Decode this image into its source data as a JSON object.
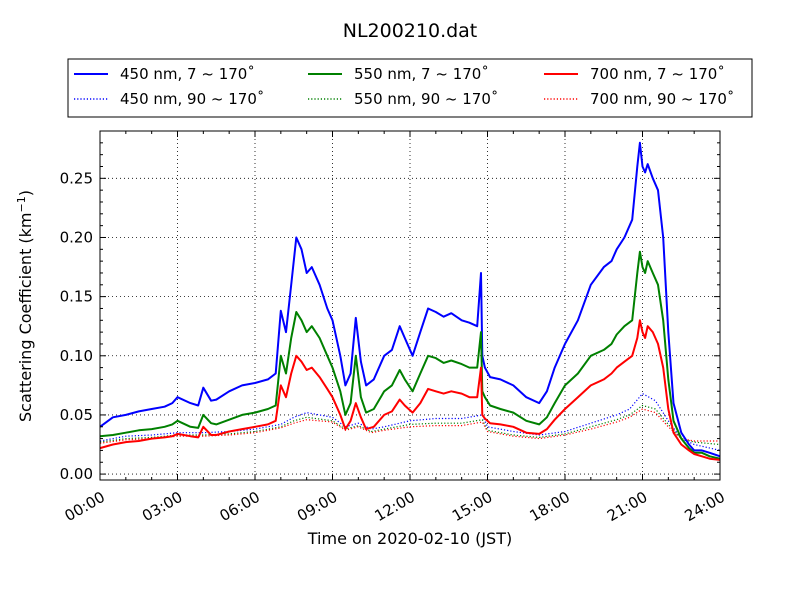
{
  "chart_data": {
    "type": "line",
    "title": "NL200210.dat",
    "xlabel": "Time on 2020-02-10 (JST)",
    "ylabel_main": "Scattering Coefficient (km",
    "ylabel_sup": "−1",
    "ylabel_tail": ")",
    "xlim": [
      0,
      24
    ],
    "ylim": [
      -0.005,
      0.29
    ],
    "x_ticks": [
      0,
      3,
      6,
      9,
      12,
      15,
      18,
      21,
      24
    ],
    "x_tick_labels": [
      "00:00",
      "03:00",
      "06:00",
      "09:00",
      "12:00",
      "15:00",
      "18:00",
      "21:00",
      "24:00"
    ],
    "y_ticks": [
      0.0,
      0.05,
      0.1,
      0.15,
      0.2,
      0.25
    ],
    "y_tick_labels": [
      "0.00",
      "0.05",
      "0.10",
      "0.15",
      "0.20",
      "0.25"
    ],
    "grid": true,
    "legend_position": "top",
    "series": [
      {
        "name": "450 nm, 7 ~ 170˚",
        "color": "#0000ff",
        "style": "solid",
        "x": [
          0,
          0.5,
          1,
          1.5,
          2,
          2.5,
          2.8,
          3,
          3.5,
          3.8,
          4,
          4.3,
          4.5,
          5,
          5.5,
          6,
          6.5,
          6.8,
          7,
          7.2,
          7.4,
          7.6,
          7.8,
          8,
          8.2,
          8.5,
          8.8,
          9,
          9.3,
          9.5,
          9.7,
          9.9,
          10.1,
          10.3,
          10.6,
          11,
          11.3,
          11.6,
          11.8,
          12.1,
          12.4,
          12.7,
          13,
          13.3,
          13.6,
          14,
          14.3,
          14.6,
          14.75,
          14.8,
          14.9,
          15.1,
          15.5,
          16,
          16.5,
          17,
          17.3,
          17.6,
          18,
          18.5,
          19,
          19.5,
          19.8,
          20,
          20.3,
          20.6,
          20.8,
          20.9,
          21,
          21.1,
          21.2,
          21.4,
          21.6,
          21.8,
          22,
          22.2,
          22.5,
          22.8,
          23,
          23.3,
          23.6,
          24
        ],
        "y": [
          0.04,
          0.048,
          0.05,
          0.053,
          0.055,
          0.057,
          0.06,
          0.065,
          0.06,
          0.058,
          0.073,
          0.062,
          0.063,
          0.07,
          0.075,
          0.077,
          0.08,
          0.085,
          0.138,
          0.12,
          0.16,
          0.2,
          0.19,
          0.17,
          0.175,
          0.16,
          0.14,
          0.13,
          0.1,
          0.075,
          0.085,
          0.132,
          0.095,
          0.075,
          0.08,
          0.1,
          0.105,
          0.125,
          0.115,
          0.1,
          0.12,
          0.14,
          0.137,
          0.133,
          0.136,
          0.13,
          0.128,
          0.125,
          0.17,
          0.1,
          0.09,
          0.082,
          0.08,
          0.075,
          0.065,
          0.06,
          0.07,
          0.09,
          0.11,
          0.13,
          0.16,
          0.175,
          0.18,
          0.19,
          0.2,
          0.215,
          0.26,
          0.28,
          0.26,
          0.255,
          0.262,
          0.25,
          0.24,
          0.2,
          0.12,
          0.06,
          0.035,
          0.025,
          0.02,
          0.02,
          0.018,
          0.015
        ]
      },
      {
        "name": "450 nm, 90 ~ 170˚",
        "color": "#0000ff",
        "style": "dotted",
        "x": [
          0,
          1,
          2,
          3,
          4,
          5,
          6,
          7,
          7.5,
          8,
          9,
          9.5,
          10,
          10.5,
          11,
          12,
          13,
          14,
          14.8,
          15,
          16,
          17,
          18,
          19,
          20,
          20.5,
          21,
          21.5,
          22,
          22.5,
          23,
          24
        ],
        "y": [
          0.028,
          0.032,
          0.033,
          0.035,
          0.035,
          0.036,
          0.038,
          0.042,
          0.048,
          0.052,
          0.048,
          0.04,
          0.043,
          0.038,
          0.04,
          0.045,
          0.047,
          0.047,
          0.05,
          0.04,
          0.036,
          0.033,
          0.036,
          0.043,
          0.05,
          0.055,
          0.068,
          0.062,
          0.045,
          0.03,
          0.025,
          0.02
        ]
      },
      {
        "name": "550 nm, 7 ~ 170˚",
        "color": "#008000",
        "style": "solid",
        "x": [
          0,
          0.5,
          1,
          1.5,
          2,
          2.5,
          2.8,
          3,
          3.5,
          3.8,
          4,
          4.3,
          4.5,
          5,
          5.5,
          6,
          6.5,
          6.8,
          7,
          7.2,
          7.4,
          7.6,
          7.8,
          8,
          8.2,
          8.5,
          8.8,
          9,
          9.3,
          9.5,
          9.7,
          9.9,
          10.1,
          10.3,
          10.6,
          11,
          11.3,
          11.6,
          11.8,
          12.1,
          12.4,
          12.7,
          13,
          13.3,
          13.6,
          14,
          14.3,
          14.6,
          14.75,
          14.8,
          14.9,
          15.1,
          15.5,
          16,
          16.5,
          17,
          17.3,
          17.6,
          18,
          18.5,
          19,
          19.5,
          19.8,
          20,
          20.3,
          20.6,
          20.8,
          20.9,
          21,
          21.1,
          21.2,
          21.4,
          21.6,
          21.8,
          22,
          22.2,
          22.5,
          22.8,
          23,
          23.3,
          23.6,
          24
        ],
        "y": [
          0.032,
          0.033,
          0.035,
          0.037,
          0.038,
          0.04,
          0.042,
          0.045,
          0.04,
          0.039,
          0.05,
          0.043,
          0.042,
          0.046,
          0.05,
          0.052,
          0.055,
          0.058,
          0.1,
          0.085,
          0.115,
          0.137,
          0.13,
          0.12,
          0.125,
          0.115,
          0.1,
          0.09,
          0.07,
          0.05,
          0.06,
          0.1,
          0.065,
          0.052,
          0.055,
          0.07,
          0.075,
          0.088,
          0.08,
          0.07,
          0.085,
          0.1,
          0.098,
          0.094,
          0.096,
          0.093,
          0.09,
          0.09,
          0.12,
          0.07,
          0.065,
          0.058,
          0.055,
          0.052,
          0.045,
          0.042,
          0.048,
          0.06,
          0.075,
          0.085,
          0.1,
          0.105,
          0.11,
          0.118,
          0.125,
          0.13,
          0.17,
          0.188,
          0.175,
          0.17,
          0.18,
          0.17,
          0.16,
          0.13,
          0.08,
          0.045,
          0.03,
          0.022,
          0.018,
          0.018,
          0.015,
          0.013
        ]
      },
      {
        "name": "550 nm, 90 ~ 170˚",
        "color": "#008000",
        "style": "dotted",
        "x": [
          0,
          1,
          2,
          3,
          4,
          5,
          6,
          7,
          7.5,
          8,
          9,
          9.5,
          10,
          10.5,
          11,
          12,
          13,
          14,
          14.8,
          15,
          16,
          17,
          18,
          19,
          20,
          20.5,
          21,
          21.5,
          22,
          22.5,
          23,
          24
        ],
        "y": [
          0.027,
          0.03,
          0.031,
          0.033,
          0.033,
          0.034,
          0.036,
          0.04,
          0.045,
          0.048,
          0.045,
          0.038,
          0.041,
          0.036,
          0.038,
          0.042,
          0.043,
          0.043,
          0.046,
          0.037,
          0.033,
          0.031,
          0.034,
          0.04,
          0.046,
          0.05,
          0.058,
          0.055,
          0.042,
          0.03,
          0.027,
          0.025
        ]
      },
      {
        "name": "700 nm, 7 ~ 170˚",
        "color": "#ff0000",
        "style": "solid",
        "x": [
          0,
          0.5,
          1,
          1.5,
          2,
          2.5,
          2.8,
          3,
          3.5,
          3.8,
          4,
          4.3,
          4.5,
          5,
          5.5,
          6,
          6.5,
          6.8,
          7,
          7.2,
          7.4,
          7.6,
          7.8,
          8,
          8.2,
          8.5,
          8.8,
          9,
          9.3,
          9.5,
          9.7,
          9.9,
          10.1,
          10.3,
          10.6,
          11,
          11.3,
          11.6,
          11.8,
          12.1,
          12.4,
          12.7,
          13,
          13.3,
          13.6,
          14,
          14.3,
          14.6,
          14.75,
          14.8,
          14.9,
          15.1,
          15.5,
          16,
          16.5,
          17,
          17.3,
          17.6,
          18,
          18.5,
          19,
          19.5,
          19.8,
          20,
          20.3,
          20.6,
          20.8,
          20.9,
          21,
          21.1,
          21.2,
          21.4,
          21.6,
          21.8,
          22,
          22.2,
          22.5,
          22.8,
          23,
          23.3,
          23.6,
          24
        ],
        "y": [
          0.022,
          0.025,
          0.027,
          0.028,
          0.03,
          0.031,
          0.032,
          0.034,
          0.032,
          0.031,
          0.04,
          0.033,
          0.033,
          0.036,
          0.038,
          0.04,
          0.042,
          0.045,
          0.075,
          0.065,
          0.085,
          0.1,
          0.095,
          0.088,
          0.09,
          0.082,
          0.072,
          0.065,
          0.05,
          0.038,
          0.045,
          0.06,
          0.048,
          0.038,
          0.04,
          0.05,
          0.053,
          0.063,
          0.058,
          0.052,
          0.06,
          0.072,
          0.07,
          0.068,
          0.07,
          0.068,
          0.065,
          0.065,
          0.09,
          0.05,
          0.047,
          0.043,
          0.042,
          0.04,
          0.035,
          0.034,
          0.038,
          0.046,
          0.055,
          0.065,
          0.075,
          0.08,
          0.085,
          0.09,
          0.095,
          0.1,
          0.115,
          0.13,
          0.12,
          0.115,
          0.125,
          0.12,
          0.11,
          0.09,
          0.055,
          0.035,
          0.025,
          0.02,
          0.017,
          0.015,
          0.013,
          0.012
        ]
      },
      {
        "name": "700 nm, 90 ~ 170˚",
        "color": "#ff0000",
        "style": "dotted",
        "x": [
          0,
          1,
          2,
          3,
          4,
          5,
          6,
          7,
          7.5,
          8,
          9,
          9.5,
          10,
          10.5,
          11,
          12,
          13,
          14,
          14.8,
          15,
          16,
          17,
          18,
          19,
          20,
          20.5,
          21,
          21.5,
          22,
          22.5,
          23,
          24
        ],
        "y": [
          0.026,
          0.029,
          0.03,
          0.032,
          0.032,
          0.033,
          0.035,
          0.039,
          0.043,
          0.046,
          0.044,
          0.037,
          0.04,
          0.035,
          0.037,
          0.04,
          0.041,
          0.041,
          0.044,
          0.036,
          0.032,
          0.03,
          0.033,
          0.038,
          0.044,
          0.048,
          0.055,
          0.052,
          0.04,
          0.03,
          0.028,
          0.028
        ]
      }
    ]
  }
}
